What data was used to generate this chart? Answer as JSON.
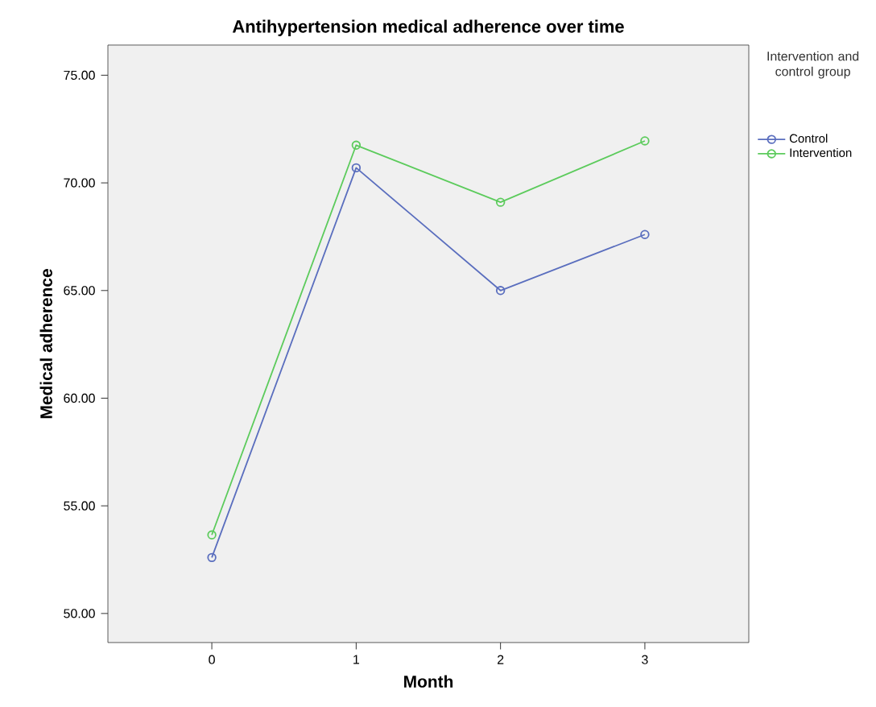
{
  "chart_data": {
    "type": "line",
    "title": "Antihypertension medical adherence over time",
    "xlabel": "Month",
    "ylabel": "Medical adherence",
    "legend_title": "Intervention and control group",
    "x": [
      0,
      1,
      2,
      3
    ],
    "xlim": [
      -0.72,
      3.72
    ],
    "xticks": [
      0,
      1,
      2,
      3
    ],
    "ylim": [
      48.65,
      76.4
    ],
    "yticks": [
      {
        "value": 50,
        "label": "50.00"
      },
      {
        "value": 55,
        "label": "55.00"
      },
      {
        "value": 60,
        "label": "60.00"
      },
      {
        "value": 65,
        "label": "65.00"
      },
      {
        "value": 70,
        "label": "70.00"
      },
      {
        "value": 75,
        "label": "75.00"
      }
    ],
    "series": [
      {
        "name": "Control",
        "color": "#5a6ebe",
        "values": [
          52.6,
          70.7,
          65.0,
          67.6
        ]
      },
      {
        "name": "Intervention",
        "color": "#5ccb5c",
        "values": [
          53.65,
          71.75,
          69.1,
          71.95
        ]
      }
    ],
    "marker": "circle",
    "grid": false,
    "legend": "right"
  }
}
